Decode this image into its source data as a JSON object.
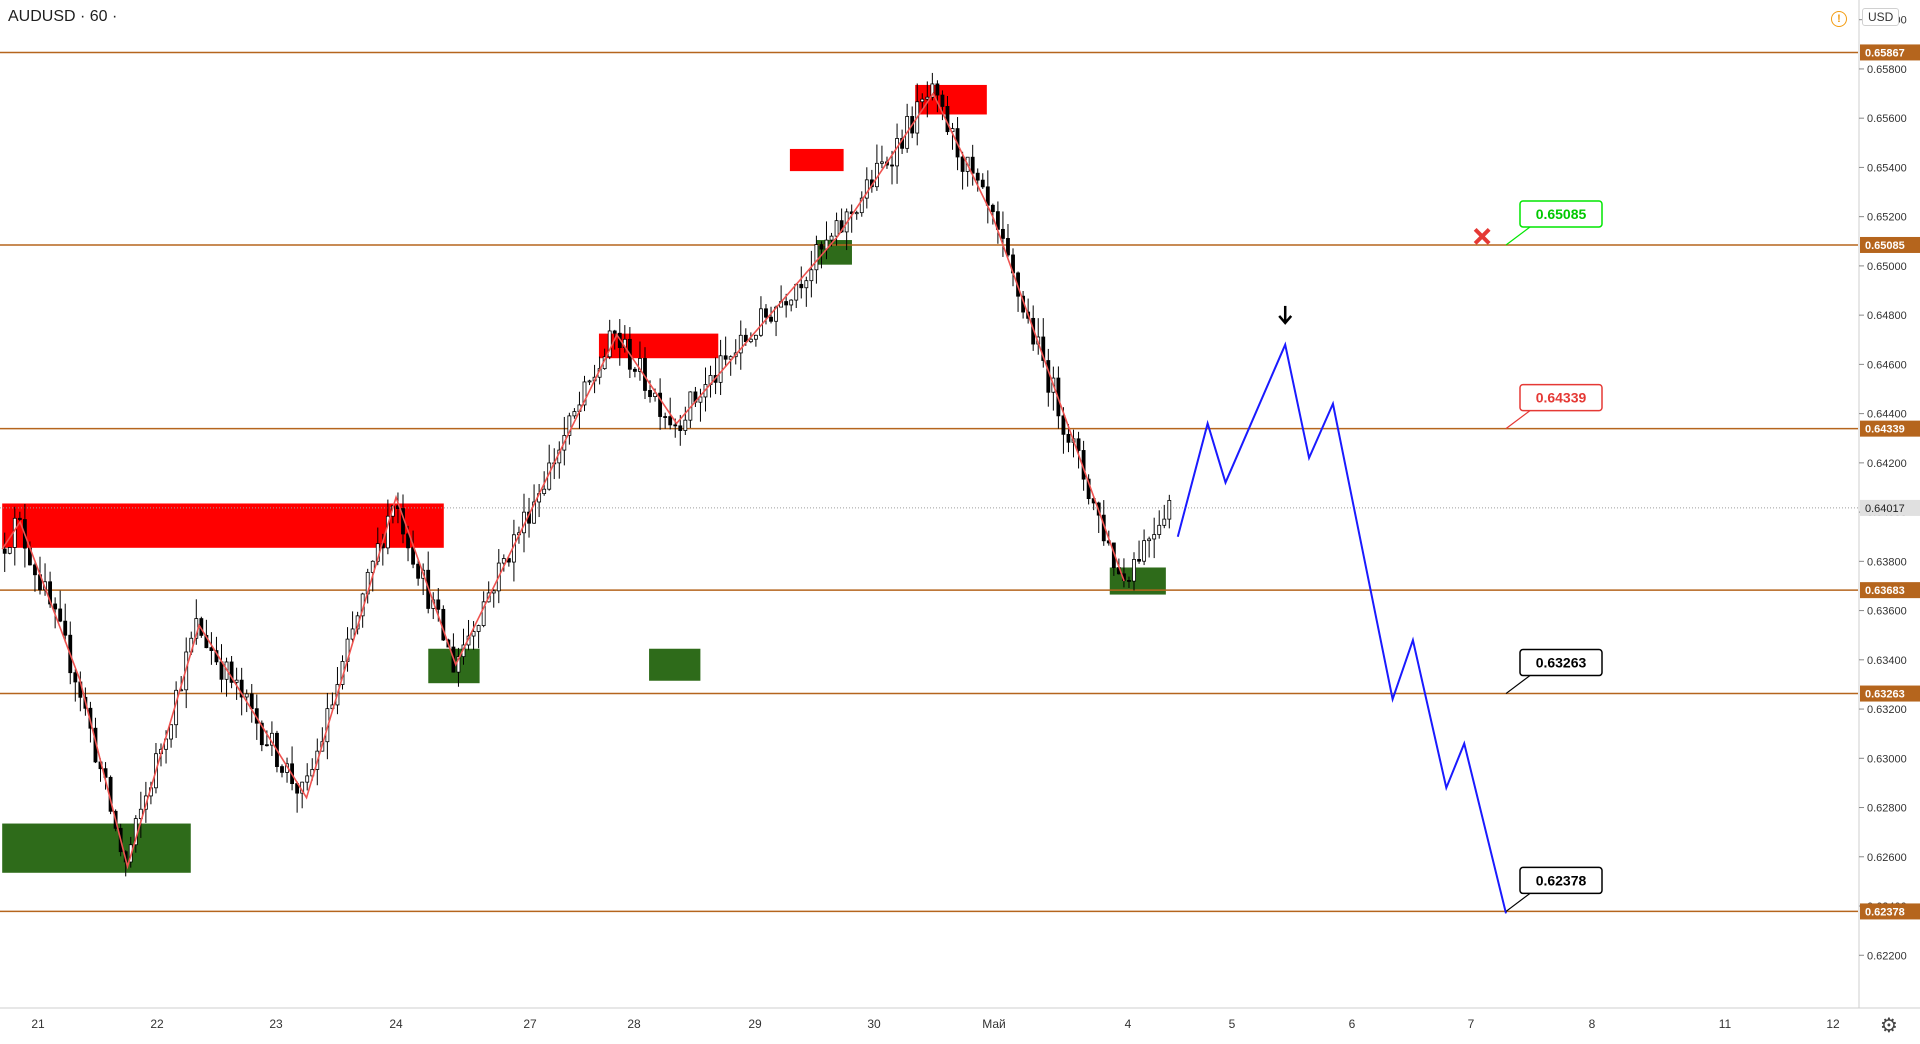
{
  "header": {
    "symbol": "AUDUSD · 60 ·",
    "currency": "USD"
  },
  "icons": [
    "warning-icon",
    "settings-gear-icon",
    "down-arrow-icon",
    "cross-mark-icon"
  ],
  "colors": {
    "level_line": "#b5651d",
    "level_label_bg": "#b5651d",
    "zigzag": "#ef5350",
    "projection": "#1a1aff",
    "supply_zone": "#ff0000",
    "demand_zone": "#2e6b1a",
    "candle_up": "#ffffff",
    "candle_down": "#000000",
    "current_price_bg": "#e0e0e0"
  },
  "chart_data": {
    "type": "candlestick",
    "title": "AUDUSD · 60",
    "x_axis_labels": [
      "21",
      "22",
      "23",
      "24",
      "27",
      "28",
      "29",
      "30",
      "Май",
      "4",
      "5",
      "6",
      "7",
      "8",
      "11",
      "12"
    ],
    "y_ticks": [
      0.66,
      0.658,
      0.656,
      0.654,
      0.652,
      0.65,
      0.648,
      0.646,
      0.644,
      0.642,
      0.64,
      0.638,
      0.636,
      0.634,
      0.632,
      0.63,
      0.628,
      0.626,
      0.624,
      0.622
    ],
    "y_tick_labels": [
      "0.66000",
      "0.65800",
      "0.65600",
      "0.65400",
      "0.65200",
      "0.65000",
      "0.64800",
      "0.64600",
      "0.64400",
      "0.64200",
      "0.64000",
      "0.63800",
      "0.63600",
      "0.63400",
      "0.63200",
      "0.63000",
      "0.62800",
      "0.62600",
      "0.62400",
      "0.62200"
    ],
    "ylim": [
      0.6205,
      0.6608
    ],
    "levels": [
      {
        "value": 0.65867,
        "label": "0.65867"
      },
      {
        "value": 0.65085,
        "label": "0.65085"
      },
      {
        "value": 0.64339,
        "label": "0.64339"
      },
      {
        "value": 0.63683,
        "label": "0.63683"
      },
      {
        "value": 0.63263,
        "label": "0.63263"
      },
      {
        "value": 0.62378,
        "label": "0.62378"
      }
    ],
    "current_price": {
      "value": 0.64017,
      "label": "0.64017"
    },
    "callouts": [
      {
        "value": 0.65085,
        "label": "0.65085",
        "style": "green"
      },
      {
        "value": 0.64339,
        "label": "0.64339",
        "style": "red"
      },
      {
        "value": 0.63263,
        "label": "0.63263",
        "style": "black"
      },
      {
        "value": 0.62378,
        "label": "0.62378",
        "style": "black"
      }
    ],
    "supply_zones": [
      {
        "x1": -0.3,
        "x2": 3.4,
        "y1": 0.63855,
        "y2": 0.64035
      },
      {
        "x1": 4.7,
        "x2": 5.7,
        "y1": 0.64625,
        "y2": 0.64725
      },
      {
        "x1": 6.3,
        "x2": 6.75,
        "y1": 0.65385,
        "y2": 0.65475
      },
      {
        "x1": 7.35,
        "x2": 7.95,
        "y1": 0.65615,
        "y2": 0.65735
      }
    ],
    "demand_zones": [
      {
        "x1": -0.3,
        "x2": 1.28,
        "y1": 0.62535,
        "y2": 0.62735
      },
      {
        "x1": 3.27,
        "x2": 3.7,
        "y1": 0.63305,
        "y2": 0.63445
      },
      {
        "x1": 5.12,
        "x2": 5.55,
        "y1": 0.63315,
        "y2": 0.63445
      },
      {
        "x1": 6.52,
        "x2": 6.82,
        "y1": 0.65005,
        "y2": 0.65105
      },
      {
        "x1": 8.98,
        "x2": 9.45,
        "y1": 0.63665,
        "y2": 0.63775
      }
    ],
    "zigzag": [
      [
        -0.3,
        0.6385
      ],
      [
        -0.15,
        0.6396
      ],
      [
        0.35,
        0.6332
      ],
      [
        0.75,
        0.6256
      ],
      [
        1.35,
        0.6354
      ],
      [
        2.25,
        0.6284
      ],
      [
        3.0,
        0.6406
      ],
      [
        3.5,
        0.6338
      ],
      [
        4.85,
        0.6472
      ],
      [
        5.35,
        0.6436
      ],
      [
        6.7,
        0.6512
      ],
      [
        7.5,
        0.657
      ],
      [
        8.0,
        0.652
      ],
      [
        9.1,
        0.6372
      ]
    ],
    "projection": [
      [
        9.55,
        0.639
      ],
      [
        9.8,
        0.6436
      ],
      [
        9.95,
        0.6412
      ],
      [
        10.45,
        0.6468
      ],
      [
        10.65,
        0.6422
      ],
      [
        10.85,
        0.6444
      ],
      [
        11.35,
        0.6324
      ],
      [
        11.52,
        0.6348
      ],
      [
        11.8,
        0.6288
      ],
      [
        11.95,
        0.6306
      ],
      [
        12.3,
        0.6237
      ]
    ],
    "marker_arrow": {
      "x": 10.45,
      "y": 0.6474
    },
    "marker_cross": {
      "x": 12.1,
      "y": 0.6512
    },
    "candle_range": {
      "x_start": -0.3,
      "x_end": 9.5,
      "count": 232
    }
  }
}
